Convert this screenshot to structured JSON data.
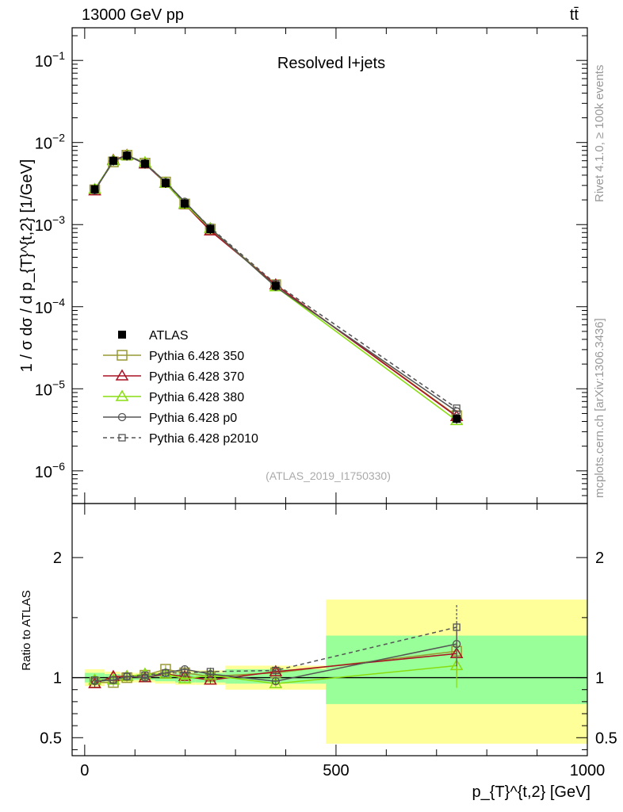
{
  "header": {
    "energy_label": "13000 GeV pp",
    "process_label": "tt̄"
  },
  "side_text": {
    "rivet": "Rivet 4.1.0, ≥ 100k events",
    "mcplots": "mcplots.cern.ch [arXiv:1306.3436]"
  },
  "chart_data": [
    {
      "type": "line",
      "panel": "main",
      "title": "Resolved l+jets",
      "analysis_id": "(ATLAS_2019_I1750330)",
      "ylabel": "1 / σ dσ / d p_{T}^{t,2} [1/GeV]",
      "xlabel": "p_{T}^{t,2} [GeV]",
      "yscale": "log",
      "xlim": [
        -25,
        1000
      ],
      "ylim": [
        4e-07,
        0.25
      ],
      "y_ticks": [
        "10^-1",
        "10^-2",
        "10^-3",
        "10^-4",
        "10^-5",
        "10^-6"
      ],
      "x": [
        20,
        57,
        84,
        120,
        161,
        199,
        250,
        380,
        740
      ],
      "data": {
        "name": "ATLAS",
        "values": [
          0.0027,
          0.006,
          0.0069,
          0.0055,
          0.0032,
          0.0018,
          0.00088,
          0.00018,
          4.3e-06
        ]
      },
      "series": [
        {
          "name": "Pythia 6.428 350",
          "color": "#999933",
          "marker": "square",
          "dash": false,
          "values": [
            0.00265,
            0.0058,
            0.007,
            0.0056,
            0.0033,
            0.00178,
            0.00088,
            0.000185,
            4.7e-06
          ]
        },
        {
          "name": "Pythia 6.428 370",
          "color": "#aa1122",
          "marker": "triangle",
          "dash": false,
          "values": [
            0.00258,
            0.0061,
            0.007,
            0.0055,
            0.0032,
            0.00177,
            0.00084,
            0.000185,
            4.6e-06
          ]
        },
        {
          "name": "Pythia 6.428 380",
          "color": "#88dd11",
          "marker": "triangle",
          "dash": false,
          "values": [
            0.0027,
            0.006,
            0.0069,
            0.0057,
            0.0032,
            0.00178,
            0.0009,
            0.000175,
            4.1e-06
          ]
        },
        {
          "name": "Pythia 6.428 p0",
          "color": "#555555",
          "marker": "circle",
          "dash": false,
          "values": [
            0.0026,
            0.006,
            0.007,
            0.0055,
            0.0033,
            0.0019,
            0.0009,
            0.000175,
            5.3e-06
          ]
        },
        {
          "name": "Pythia 6.428 p2010",
          "color": "#555555",
          "marker": "square-small",
          "dash": true,
          "values": [
            0.00265,
            0.0059,
            0.007,
            0.0056,
            0.0033,
            0.00185,
            0.00092,
            0.00019,
            5.8e-06
          ]
        }
      ]
    },
    {
      "type": "line",
      "panel": "ratio",
      "ylabel": "Ratio to ATLAS",
      "xlabel": "p_{T}^{t,2} [GeV]",
      "xlim": [
        -25,
        1000
      ],
      "ylim": [
        0.35,
        2.45
      ],
      "y_ticks": [
        "2",
        "1",
        "0.5"
      ],
      "y_tick_values": [
        2,
        1,
        0.5
      ],
      "x_ticks": [
        "0",
        "500",
        "1000"
      ],
      "x_tick_values": [
        0,
        500,
        1000
      ],
      "bins": [
        0,
        40,
        70,
        100,
        140,
        180,
        220,
        280,
        480,
        1000
      ],
      "band_stat": [
        [
          0.96,
          1.04
        ],
        [
          0.97,
          1.03
        ],
        [
          0.98,
          1.02
        ],
        [
          0.98,
          1.02
        ],
        [
          0.97,
          1.03
        ],
        [
          0.96,
          1.04
        ],
        [
          0.96,
          1.04
        ],
        [
          0.95,
          1.07
        ],
        [
          0.78,
          1.35
        ]
      ],
      "band_total": [
        [
          0.93,
          1.07
        ],
        [
          0.95,
          1.05
        ],
        [
          0.96,
          1.04
        ],
        [
          0.96,
          1.04
        ],
        [
          0.95,
          1.05
        ],
        [
          0.94,
          1.06
        ],
        [
          0.94,
          1.06
        ],
        [
          0.9,
          1.1
        ],
        [
          0.45,
          1.65
        ]
      ],
      "x": [
        20,
        57,
        84,
        120,
        161,
        199,
        250,
        380,
        740
      ],
      "series": [
        {
          "name": "Pythia 6.428 350",
          "values": [
            0.96,
            0.96,
            1.0,
            1.02,
            1.07,
            1.04,
            1.01,
            1.04,
            1.22
          ]
        },
        {
          "name": "Pythia 6.428 370",
          "values": [
            0.95,
            1.01,
            1.01,
            1.0,
            1.03,
            1.01,
            0.98,
            1.05,
            1.2
          ]
        },
        {
          "name": "Pythia 6.428 380",
          "values": [
            0.98,
            0.98,
            1.01,
            1.03,
            1.03,
            0.99,
            1.02,
            0.95,
            1.1
          ]
        },
        {
          "name": "Pythia 6.428 p0",
          "values": [
            0.97,
            0.98,
            1.01,
            1.0,
            1.04,
            1.07,
            1.03,
            0.97,
            1.28
          ]
        },
        {
          "name": "Pythia 6.428 p2010",
          "values": [
            0.98,
            0.98,
            1.01,
            1.02,
            1.04,
            1.04,
            1.05,
            1.06,
            1.42
          ]
        }
      ]
    }
  ]
}
